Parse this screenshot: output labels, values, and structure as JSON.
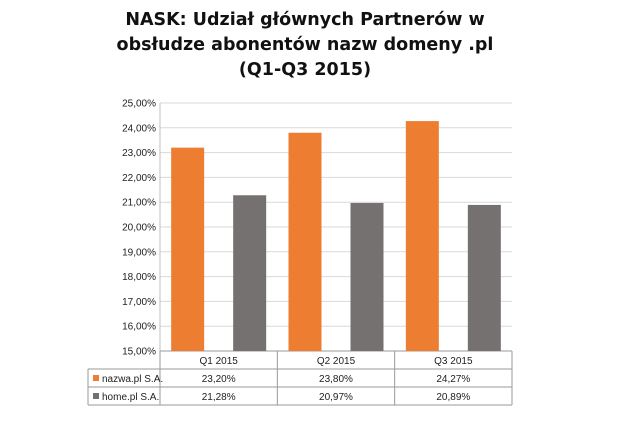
{
  "title_lines": [
    "NASK: Udział głównych Partnerów w",
    "obsłudze abonentów nazw domeny .pl",
    "(Q1-Q3  2015)"
  ],
  "chart_data": {
    "type": "bar",
    "title": "NASK: Udział głównych Partnerów w obsłudze abonentów nazw domeny .pl (Q1-Q3  2015)",
    "categories": [
      "Q1 2015",
      "Q2 2015",
      "Q3 2015"
    ],
    "series": [
      {
        "name": "nazwa.pl S.A.",
        "values": [
          23.2,
          23.8,
          24.27
        ],
        "labels": [
          "23,20%",
          "23,80%",
          "24,27%"
        ],
        "color": "#ED7D31"
      },
      {
        "name": "home.pl S.A.",
        "values": [
          21.28,
          20.97,
          20.89
        ],
        "labels": [
          "21,28%",
          "20,97%",
          "20,89%"
        ],
        "color": "#767171"
      }
    ],
    "ylim": [
      15,
      25
    ],
    "yticks": [
      25,
      24,
      23,
      22,
      21,
      20,
      19,
      18,
      17,
      16,
      15
    ],
    "ytick_labels": [
      "25,00%",
      "24,00%",
      "23,00%",
      "22,00%",
      "21,00%",
      "20,00%",
      "19,00%",
      "18,00%",
      "17,00%",
      "16,00%",
      "15,00%"
    ],
    "grid": true,
    "legend": "data-table"
  }
}
